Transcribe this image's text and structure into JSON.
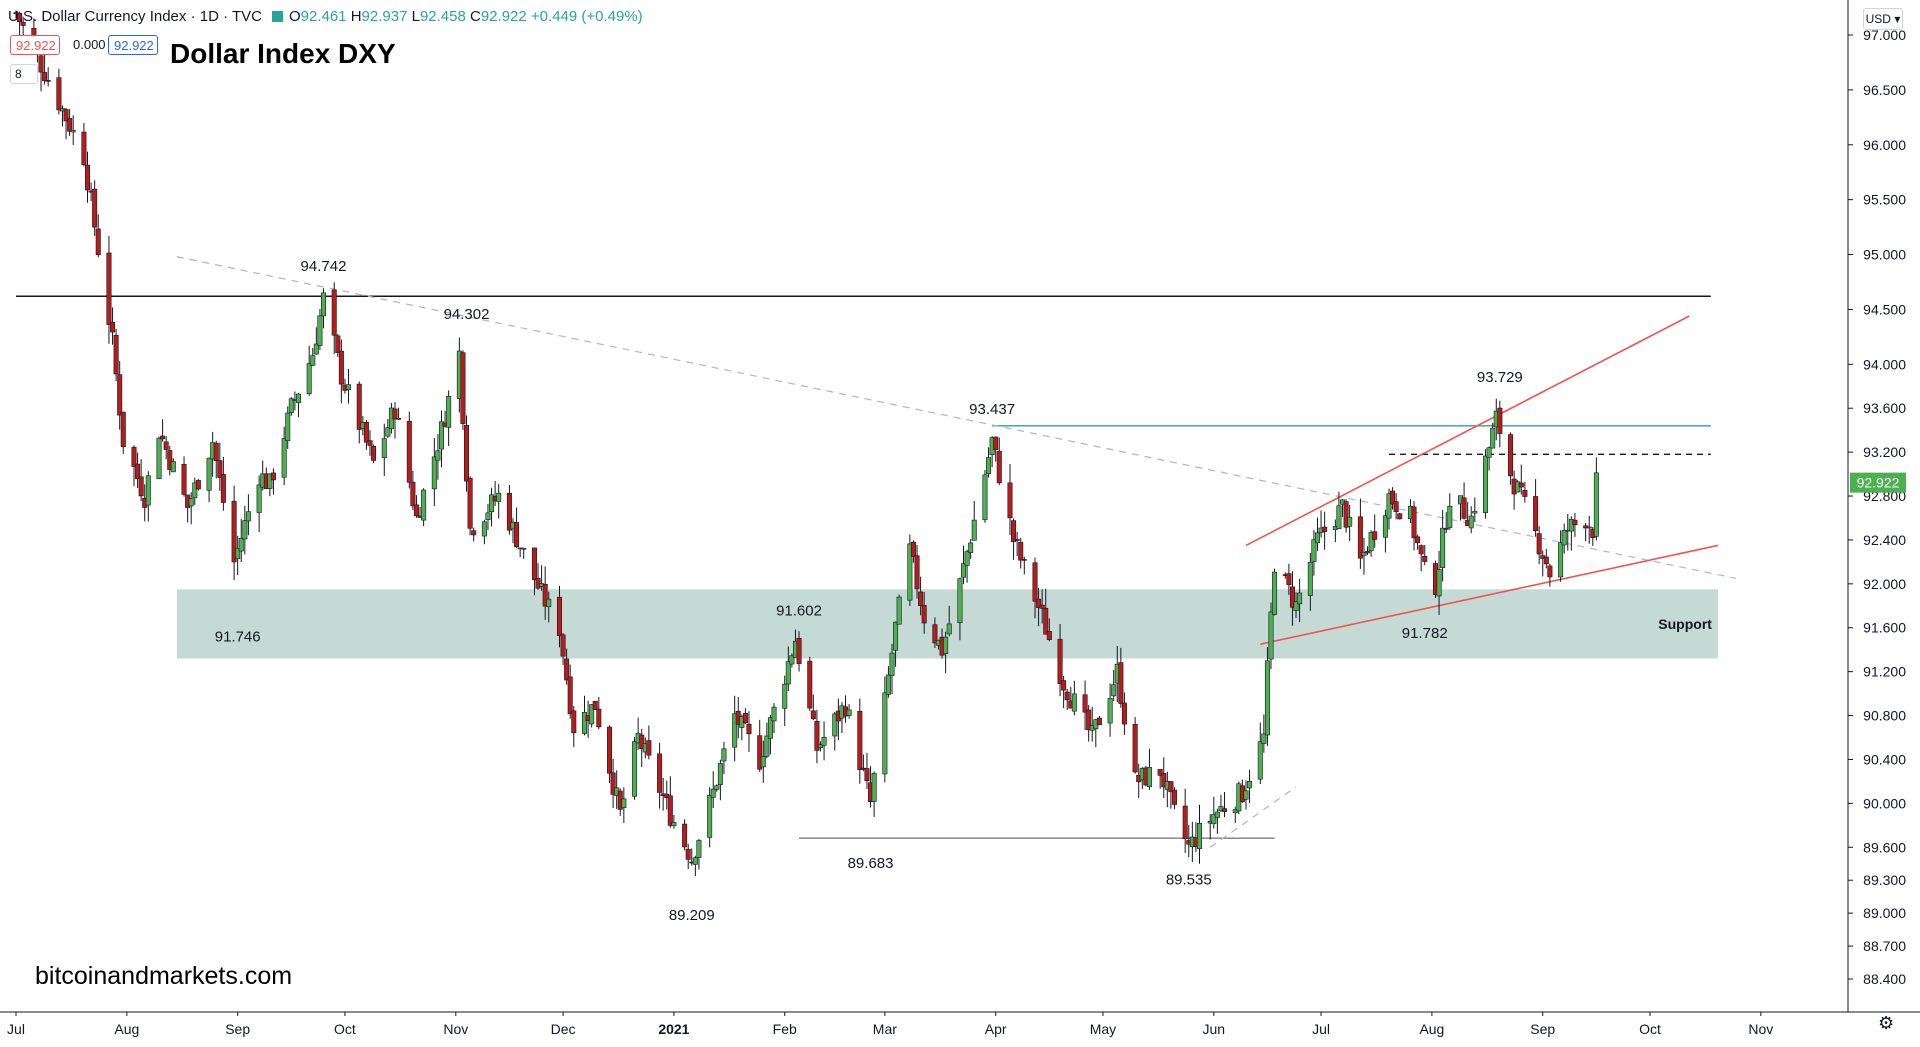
{
  "legend": {
    "symbol": "U.S. Dollar Currency Index · 1D · TVC",
    "ohlc": [
      {
        "label": "O",
        "value": "92.461"
      },
      {
        "label": "H",
        "value": "92.937"
      },
      {
        "label": "L",
        "value": "92.458"
      },
      {
        "label": "C",
        "value": "92.922"
      }
    ],
    "change": "+0.449 (+0.49%)",
    "sell_price": "92.922",
    "spread": "0.000",
    "buy_price": "92.922",
    "collapse_label": "8"
  },
  "title": "Dollar Index DXY",
  "watermark": "bitcoinandmarkets.com",
  "currency_button": "USD",
  "settings_icon": "gear-icon",
  "colors": {
    "up": "#26a69a",
    "up_candle": "#4caf50",
    "down": "#b71c1c",
    "accent_red": "#ef5350",
    "support_zone": "#b2cdc6",
    "resistance_teal": "#26a69a",
    "price_tag": "#4caf50"
  },
  "chart_data": {
    "type": "candlestick",
    "symbol": "U.S. Dollar Currency Index",
    "timeframe": "1D",
    "ylim": [
      88.35,
      97.05
    ],
    "y_ticks": [
      "97.000",
      "96.500",
      "96.000",
      "95.500",
      "95.000",
      "94.500",
      "94.000",
      "93.600",
      "93.200",
      "92.800",
      "92.400",
      "92.000",
      "91.600",
      "91.200",
      "90.800",
      "90.400",
      "90.000",
      "89.600",
      "89.300",
      "89.000",
      "88.700",
      "88.400"
    ],
    "x_labels": [
      "Jul",
      "Aug",
      "Sep",
      "Oct",
      "Nov",
      "Dec",
      "2021",
      "Feb",
      "Mar",
      "Apr",
      "May",
      "Jun",
      "Jul",
      "Aug",
      "Sep",
      "Oct",
      "Nov"
    ],
    "x_label_dates": [
      "2020-07-01",
      "2020-08-01",
      "2020-09-01",
      "2020-10-01",
      "2020-11-01",
      "2020-12-01",
      "2021-01-01",
      "2021-02-01",
      "2021-03-01",
      "2021-04-01",
      "2021-05-01",
      "2021-06-01",
      "2021-07-01",
      "2021-08-01",
      "2021-09-01",
      "2021-10-01",
      "2021-11-01"
    ],
    "x_range": [
      "2020-07-01",
      "2021-11-03"
    ],
    "last_price": "92.922",
    "pivot_points": [
      {
        "date": "2020-07-01",
        "close": 97.2
      },
      {
        "date": "2020-07-10",
        "close": 96.6
      },
      {
        "date": "2020-07-20",
        "close": 95.9
      },
      {
        "date": "2020-07-28",
        "close": 94.2
      },
      {
        "date": "2020-07-31",
        "close": 93.3
      },
      {
        "date": "2020-08-06",
        "close": 92.8
      },
      {
        "date": "2020-08-10",
        "close": 93.4
      },
      {
        "date": "2020-08-18",
        "close": 92.7
      },
      {
        "date": "2020-08-25",
        "close": 93.3
      },
      {
        "date": "2020-08-31",
        "close": 92.2
      },
      {
        "date": "2020-09-07",
        "close": 93.0
      },
      {
        "date": "2020-09-10",
        "close": 92.9
      },
      {
        "date": "2020-09-16",
        "close": 93.6
      },
      {
        "date": "2020-09-22",
        "close": 94.1
      },
      {
        "date": "2020-09-25",
        "close": 94.6
      },
      {
        "date": "2020-09-30",
        "close": 93.9
      },
      {
        "date": "2020-10-09",
        "close": 93.1
      },
      {
        "date": "2020-10-15",
        "close": 93.6
      },
      {
        "date": "2020-10-21",
        "close": 92.6
      },
      {
        "date": "2020-10-28",
        "close": 93.4
      },
      {
        "date": "2020-11-02",
        "close": 94.1
      },
      {
        "date": "2020-11-05",
        "close": 92.5
      },
      {
        "date": "2020-11-13",
        "close": 92.8
      },
      {
        "date": "2020-11-25",
        "close": 91.9
      },
      {
        "date": "2020-11-30",
        "close": 91.6
      },
      {
        "date": "2020-12-04",
        "close": 90.7
      },
      {
        "date": "2020-12-10",
        "close": 90.9
      },
      {
        "date": "2020-12-17",
        "close": 89.9
      },
      {
        "date": "2020-12-22",
        "close": 90.6
      },
      {
        "date": "2020-12-31",
        "close": 89.9
      },
      {
        "date": "2021-01-06",
        "close": 89.5
      },
      {
        "date": "2021-01-12",
        "close": 90.1
      },
      {
        "date": "2021-01-18",
        "close": 90.8
      },
      {
        "date": "2021-01-25",
        "close": 90.4
      },
      {
        "date": "2021-02-04",
        "close": 91.5
      },
      {
        "date": "2021-02-10",
        "close": 90.5
      },
      {
        "date": "2021-02-18",
        "close": 90.9
      },
      {
        "date": "2021-02-25",
        "close": 90.0
      },
      {
        "date": "2021-03-04",
        "close": 91.6
      },
      {
        "date": "2021-03-08",
        "close": 92.3
      },
      {
        "date": "2021-03-12",
        "close": 91.7
      },
      {
        "date": "2021-03-17",
        "close": 91.4
      },
      {
        "date": "2021-03-22",
        "close": 92.0
      },
      {
        "date": "2021-03-31",
        "close": 93.3
      },
      {
        "date": "2021-04-06",
        "close": 92.4
      },
      {
        "date": "2021-04-14",
        "close": 91.7
      },
      {
        "date": "2021-04-20",
        "close": 91.1
      },
      {
        "date": "2021-04-28",
        "close": 90.6
      },
      {
        "date": "2021-05-05",
        "close": 91.2
      },
      {
        "date": "2021-05-10",
        "close": 90.2
      },
      {
        "date": "2021-05-17",
        "close": 90.3
      },
      {
        "date": "2021-05-21",
        "close": 89.9
      },
      {
        "date": "2021-05-25",
        "close": 89.6
      },
      {
        "date": "2021-06-01",
        "close": 89.9
      },
      {
        "date": "2021-06-09",
        "close": 90.1
      },
      {
        "date": "2021-06-15",
        "close": 90.6
      },
      {
        "date": "2021-06-16",
        "close": 91.2
      },
      {
        "date": "2021-06-18",
        "close": 92.2
      },
      {
        "date": "2021-06-24",
        "close": 91.8
      },
      {
        "date": "2021-06-30",
        "close": 92.4
      },
      {
        "date": "2021-07-07",
        "close": 92.7
      },
      {
        "date": "2021-07-12",
        "close": 92.2
      },
      {
        "date": "2021-07-20",
        "close": 92.8
      },
      {
        "date": "2021-07-26",
        "close": 92.6
      },
      {
        "date": "2021-07-30",
        "close": 92.1
      },
      {
        "date": "2021-08-02",
        "close": 92.0
      },
      {
        "date": "2021-08-06",
        "close": 92.8
      },
      {
        "date": "2021-08-12",
        "close": 92.6
      },
      {
        "date": "2021-08-19",
        "close": 93.5
      },
      {
        "date": "2021-08-20",
        "close": 93.4
      },
      {
        "date": "2021-08-23",
        "close": 93.0
      },
      {
        "date": "2021-08-27",
        "close": 92.7
      },
      {
        "date": "2021-09-02",
        "close": 92.2
      },
      {
        "date": "2021-09-03",
        "close": 92.1
      },
      {
        "date": "2021-09-08",
        "close": 92.5
      },
      {
        "date": "2021-09-13",
        "close": 92.6
      },
      {
        "date": "2021-09-15",
        "close": 92.5
      },
      {
        "date": "2021-09-16",
        "close": 92.922
      }
    ],
    "swing_labels": [
      {
        "text": "94.742",
        "date": "2020-09-25",
        "value": 94.742,
        "position": "above"
      },
      {
        "text": "94.302",
        "date": "2020-11-04",
        "value": 94.302,
        "position": "above"
      },
      {
        "text": "91.746",
        "date": "2020-09-01",
        "value": 91.746,
        "position": "below"
      },
      {
        "text": "91.602",
        "date": "2021-02-05",
        "value": 91.602,
        "position": "above"
      },
      {
        "text": "89.209",
        "date": "2021-01-06",
        "value": 89.209,
        "position": "below"
      },
      {
        "text": "89.683",
        "date": "2021-02-25",
        "value": 89.683,
        "position": "below"
      },
      {
        "text": "93.437",
        "date": "2021-03-31",
        "value": 93.437,
        "position": "above"
      },
      {
        "text": "89.535",
        "date": "2021-05-25",
        "value": 89.535,
        "position": "below"
      },
      {
        "text": "91.782",
        "date": "2021-07-30",
        "value": 91.782,
        "position": "below"
      },
      {
        "text": "93.729",
        "date": "2021-08-20",
        "value": 93.729,
        "position": "above"
      }
    ],
    "support_zone": {
      "label": "Support",
      "from": "2020-08-15",
      "to": "2021-10-20",
      "low": 91.32,
      "high": 91.95
    },
    "horizontal_lines": [
      {
        "value": 94.62,
        "from": "2020-07-01",
        "to": "2021-10-18",
        "color": "#131722",
        "style": "solid"
      },
      {
        "value": 93.44,
        "from": "2021-03-31",
        "to": "2021-10-18",
        "color": "#26a69a",
        "style": "solid"
      },
      {
        "value": 93.18,
        "from": "2021-07-20",
        "to": "2021-10-18",
        "color": "#131722",
        "style": "dashed"
      },
      {
        "value": 89.683,
        "from": "2021-02-05",
        "to": "2021-06-18",
        "color": "#787b86",
        "style": "solid"
      }
    ],
    "trend_lines": [
      {
        "from": [
          "2020-08-15",
          94.98
        ],
        "to": [
          "2021-10-25",
          92.05
        ],
        "color": "#b2b5be",
        "style": "dashed"
      },
      {
        "from": [
          "2021-06-10",
          92.35
        ],
        "to": [
          "2021-10-12",
          94.44
        ],
        "color": "#ef5350",
        "style": "solid"
      },
      {
        "from": [
          "2021-06-14",
          91.45
        ],
        "to": [
          "2021-10-20",
          92.35
        ],
        "color": "#ef5350",
        "style": "solid"
      },
      {
        "from": [
          "2021-05-31",
          89.6
        ],
        "to": [
          "2021-06-24",
          90.15
        ],
        "color": "#b2b5be",
        "style": "dashed"
      }
    ]
  }
}
